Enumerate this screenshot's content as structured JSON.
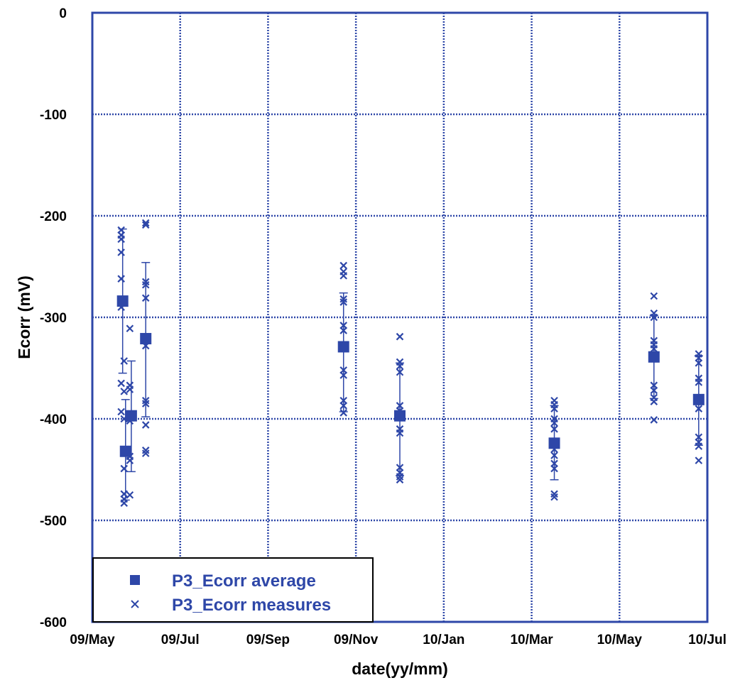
{
  "chart_data": {
    "type": "scatter",
    "xlabel": "date(yy/mm)",
    "ylabel": "Ecorr (mV)",
    "x_ticks": [
      "09/May",
      "09/Jul",
      "09/Sep",
      "09/Nov",
      "10/Jan",
      "10/Mar",
      "10/May",
      "10/Jul"
    ],
    "y_ticks": [
      "0",
      "-100",
      "-200",
      "-300",
      "-400",
      "-500",
      "-600"
    ],
    "ylim": [
      -600,
      0
    ],
    "xlim": [
      "2009-05-01",
      "2010-07-01"
    ],
    "grid": true,
    "legend_position": "bottom-left",
    "colors": {
      "series": "#2e47a8",
      "axis": "#2e47a8",
      "grid": "#2e47a8"
    },
    "series": [
      {
        "name": "P3_Ecorr average",
        "marker": "square",
        "points": [
          {
            "x": "2009-05-22",
            "y": -284,
            "err_low": -355,
            "err_high": -213
          },
          {
            "x": "2009-05-24",
            "y": -432,
            "err_low": -480,
            "err_high": -381
          },
          {
            "x": "2009-05-28",
            "y": -397,
            "err_low": -452,
            "err_high": -343
          },
          {
            "x": "2009-06-07",
            "y": -321,
            "err_low": -398,
            "err_high": -246
          },
          {
            "x": "2009-10-22",
            "y": -329,
            "err_low": -393,
            "err_high": -276
          },
          {
            "x": "2009-11-30",
            "y": -397,
            "err_low": -456,
            "err_high": -345
          },
          {
            "x": "2010-03-17",
            "y": -424,
            "err_low": -460,
            "err_high": -387
          },
          {
            "x": "2010-05-25",
            "y": -339,
            "err_low": -380,
            "err_high": -298
          },
          {
            "x": "2010-06-25",
            "y": -381,
            "err_low": -426,
            "err_high": -338
          }
        ]
      },
      {
        "name": "P3_Ecorr measures",
        "marker": "x",
        "points": [
          {
            "x": "2009-05-21",
            "y": -214
          },
          {
            "x": "2009-05-21",
            "y": -219
          },
          {
            "x": "2009-05-21",
            "y": -223
          },
          {
            "x": "2009-05-21",
            "y": -236
          },
          {
            "x": "2009-05-21",
            "y": -262
          },
          {
            "x": "2009-05-21",
            "y": -290
          },
          {
            "x": "2009-05-21",
            "y": -365
          },
          {
            "x": "2009-05-21",
            "y": -393
          },
          {
            "x": "2009-05-23",
            "y": -343
          },
          {
            "x": "2009-05-23",
            "y": -373
          },
          {
            "x": "2009-05-23",
            "y": -400
          },
          {
            "x": "2009-05-23",
            "y": -449
          },
          {
            "x": "2009-05-23",
            "y": -474
          },
          {
            "x": "2009-05-23",
            "y": -479
          },
          {
            "x": "2009-05-23",
            "y": -483
          },
          {
            "x": "2009-05-27",
            "y": -311
          },
          {
            "x": "2009-05-27",
            "y": -367
          },
          {
            "x": "2009-05-27",
            "y": -371
          },
          {
            "x": "2009-05-27",
            "y": -402
          },
          {
            "x": "2009-05-27",
            "y": -437
          },
          {
            "x": "2009-05-27",
            "y": -441
          },
          {
            "x": "2009-05-27",
            "y": -475
          },
          {
            "x": "2009-06-07",
            "y": -207
          },
          {
            "x": "2009-06-07",
            "y": -209
          },
          {
            "x": "2009-06-07",
            "y": -265
          },
          {
            "x": "2009-06-07",
            "y": -268
          },
          {
            "x": "2009-06-07",
            "y": -281
          },
          {
            "x": "2009-06-07",
            "y": -328
          },
          {
            "x": "2009-06-07",
            "y": -382
          },
          {
            "x": "2009-06-07",
            "y": -385
          },
          {
            "x": "2009-06-07",
            "y": -406
          },
          {
            "x": "2009-06-07",
            "y": -431
          },
          {
            "x": "2009-06-07",
            "y": -434
          },
          {
            "x": "2009-10-22",
            "y": -249
          },
          {
            "x": "2009-10-22",
            "y": -255
          },
          {
            "x": "2009-10-22",
            "y": -259
          },
          {
            "x": "2009-10-22",
            "y": -282
          },
          {
            "x": "2009-10-22",
            "y": -285
          },
          {
            "x": "2009-10-22",
            "y": -308
          },
          {
            "x": "2009-10-22",
            "y": -313
          },
          {
            "x": "2009-10-22",
            "y": -352
          },
          {
            "x": "2009-10-22",
            "y": -357
          },
          {
            "x": "2009-10-22",
            "y": -382
          },
          {
            "x": "2009-10-22",
            "y": -387
          },
          {
            "x": "2009-10-22",
            "y": -394
          },
          {
            "x": "2009-11-30",
            "y": -319
          },
          {
            "x": "2009-11-30",
            "y": -344
          },
          {
            "x": "2009-11-30",
            "y": -348
          },
          {
            "x": "2009-11-30",
            "y": -354
          },
          {
            "x": "2009-11-30",
            "y": -387
          },
          {
            "x": "2009-11-30",
            "y": -392
          },
          {
            "x": "2009-11-30",
            "y": -410
          },
          {
            "x": "2009-11-30",
            "y": -414
          },
          {
            "x": "2009-11-30",
            "y": -448
          },
          {
            "x": "2009-11-30",
            "y": -453
          },
          {
            "x": "2009-11-30",
            "y": -457
          },
          {
            "x": "2009-11-30",
            "y": -460
          },
          {
            "x": "2010-03-17",
            "y": -382
          },
          {
            "x": "2010-03-17",
            "y": -386
          },
          {
            "x": "2010-03-17",
            "y": -390
          },
          {
            "x": "2010-03-17",
            "y": -400
          },
          {
            "x": "2010-03-17",
            "y": -404
          },
          {
            "x": "2010-03-17",
            "y": -410
          },
          {
            "x": "2010-03-17",
            "y": -430
          },
          {
            "x": "2010-03-17",
            "y": -436
          },
          {
            "x": "2010-03-17",
            "y": -444
          },
          {
            "x": "2010-03-17",
            "y": -449
          },
          {
            "x": "2010-03-17",
            "y": -474
          },
          {
            "x": "2010-03-17",
            "y": -477
          },
          {
            "x": "2010-05-25",
            "y": -279
          },
          {
            "x": "2010-05-25",
            "y": -296
          },
          {
            "x": "2010-05-25",
            "y": -300
          },
          {
            "x": "2010-05-25",
            "y": -323
          },
          {
            "x": "2010-05-25",
            "y": -327
          },
          {
            "x": "2010-05-25",
            "y": -331
          },
          {
            "x": "2010-05-25",
            "y": -367
          },
          {
            "x": "2010-05-25",
            "y": -372
          },
          {
            "x": "2010-05-25",
            "y": -379
          },
          {
            "x": "2010-05-25",
            "y": -383
          },
          {
            "x": "2010-05-25",
            "y": -401
          },
          {
            "x": "2010-06-25",
            "y": -336
          },
          {
            "x": "2010-06-25",
            "y": -340
          },
          {
            "x": "2010-06-25",
            "y": -345
          },
          {
            "x": "2010-06-25",
            "y": -360
          },
          {
            "x": "2010-06-25",
            "y": -364
          },
          {
            "x": "2010-06-25",
            "y": -390
          },
          {
            "x": "2010-06-25",
            "y": -418
          },
          {
            "x": "2010-06-25",
            "y": -423
          },
          {
            "x": "2010-06-25",
            "y": -427
          },
          {
            "x": "2010-06-25",
            "y": -441
          }
        ]
      }
    ]
  }
}
